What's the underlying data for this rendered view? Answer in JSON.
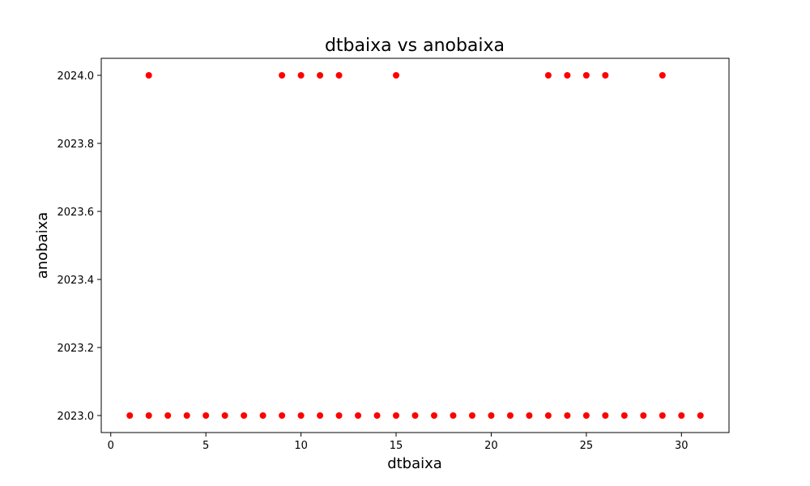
{
  "chart_data": {
    "type": "scatter",
    "title": "dtbaixa vs anobaixa",
    "xlabel": "dtbaixa",
    "ylabel": "anobaixa",
    "xlim": [
      -0.5,
      32.5
    ],
    "ylim": [
      2022.95,
      2024.05
    ],
    "xticks": [
      0,
      5,
      10,
      15,
      20,
      25,
      30
    ],
    "xtick_labels": [
      "0",
      "5",
      "10",
      "15",
      "20",
      "25",
      "30"
    ],
    "yticks": [
      2023.0,
      2023.2,
      2023.4,
      2023.6,
      2023.8,
      2024.0
    ],
    "ytick_labels": [
      "2023.0",
      "2023.2",
      "2023.4",
      "2023.6",
      "2023.8",
      "2024.0"
    ],
    "grid": false,
    "legend": "none",
    "marker_color": "#ff0000",
    "points": [
      {
        "x": 1,
        "y": 2023
      },
      {
        "x": 2,
        "y": 2023
      },
      {
        "x": 3,
        "y": 2023
      },
      {
        "x": 4,
        "y": 2023
      },
      {
        "x": 5,
        "y": 2023
      },
      {
        "x": 6,
        "y": 2023
      },
      {
        "x": 7,
        "y": 2023
      },
      {
        "x": 8,
        "y": 2023
      },
      {
        "x": 9,
        "y": 2023
      },
      {
        "x": 10,
        "y": 2023
      },
      {
        "x": 11,
        "y": 2023
      },
      {
        "x": 12,
        "y": 2023
      },
      {
        "x": 13,
        "y": 2023
      },
      {
        "x": 14,
        "y": 2023
      },
      {
        "x": 15,
        "y": 2023
      },
      {
        "x": 16,
        "y": 2023
      },
      {
        "x": 17,
        "y": 2023
      },
      {
        "x": 18,
        "y": 2023
      },
      {
        "x": 19,
        "y": 2023
      },
      {
        "x": 20,
        "y": 2023
      },
      {
        "x": 21,
        "y": 2023
      },
      {
        "x": 22,
        "y": 2023
      },
      {
        "x": 23,
        "y": 2023
      },
      {
        "x": 24,
        "y": 2023
      },
      {
        "x": 25,
        "y": 2023
      },
      {
        "x": 26,
        "y": 2023
      },
      {
        "x": 27,
        "y": 2023
      },
      {
        "x": 28,
        "y": 2023
      },
      {
        "x": 29,
        "y": 2023
      },
      {
        "x": 30,
        "y": 2023
      },
      {
        "x": 31,
        "y": 2023
      },
      {
        "x": 2,
        "y": 2024
      },
      {
        "x": 9,
        "y": 2024
      },
      {
        "x": 10,
        "y": 2024
      },
      {
        "x": 11,
        "y": 2024
      },
      {
        "x": 12,
        "y": 2024
      },
      {
        "x": 15,
        "y": 2024
      },
      {
        "x": 23,
        "y": 2024
      },
      {
        "x": 24,
        "y": 2024
      },
      {
        "x": 25,
        "y": 2024
      },
      {
        "x": 26,
        "y": 2024
      },
      {
        "x": 29,
        "y": 2024
      }
    ]
  }
}
